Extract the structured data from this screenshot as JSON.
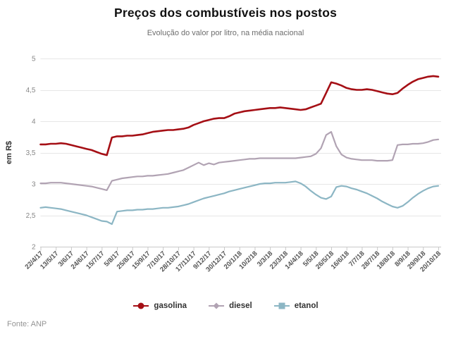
{
  "chart_data": {
    "type": "line",
    "title": "Preços dos combustíveis nos postos",
    "subtitle": "Evolução do valor por litro, na média nacional",
    "ylabel": "em R$",
    "ylim": [
      2,
      5
    ],
    "grid": "horizontal",
    "legend_position": "bottom",
    "source": "Fonte: ANP",
    "y_ticks": [
      {
        "value": 2,
        "label": "2"
      },
      {
        "value": 2.5,
        "label": "2,5"
      },
      {
        "value": 3,
        "label": "3"
      },
      {
        "value": 3.5,
        "label": "3,5"
      },
      {
        "value": 4,
        "label": "4"
      },
      {
        "value": 4.5,
        "label": "4,5"
      },
      {
        "value": 5,
        "label": "5"
      }
    ],
    "points_per_tick": 3,
    "x_tick_labels": [
      "22/4/17",
      "13/5/17",
      "3/6/17",
      "24/6/17",
      "15/7/17",
      "5/8/17",
      "25/8/17",
      "15/9/17",
      "7/10/17",
      "28/10/17",
      "17/11/17",
      "9/12/17",
      "30/12/17",
      "20/1/18",
      "10/2/18",
      "3/3/18",
      "23/3/18",
      "14/4/18",
      "5/5/18",
      "26/5/18",
      "16/6/18",
      "7/7/18",
      "28/7/18",
      "18/8/18",
      "8/9/18",
      "29/9/18",
      "20/10/18"
    ],
    "series": [
      {
        "name": "gasolina",
        "color": "#a50f15",
        "marker": "circle",
        "line_width": 2.6,
        "values": [
          3.63,
          3.63,
          3.64,
          3.64,
          3.65,
          3.64,
          3.62,
          3.6,
          3.58,
          3.56,
          3.54,
          3.51,
          3.48,
          3.46,
          3.74,
          3.76,
          3.76,
          3.77,
          3.77,
          3.78,
          3.79,
          3.81,
          3.83,
          3.84,
          3.85,
          3.86,
          3.86,
          3.87,
          3.88,
          3.9,
          3.94,
          3.97,
          4.0,
          4.02,
          4.04,
          4.05,
          4.05,
          4.08,
          4.12,
          4.14,
          4.16,
          4.17,
          4.18,
          4.19,
          4.2,
          4.21,
          4.21,
          4.22,
          4.21,
          4.2,
          4.19,
          4.18,
          4.19,
          4.22,
          4.25,
          4.28,
          4.45,
          4.62,
          4.6,
          4.57,
          4.53,
          4.51,
          4.5,
          4.5,
          4.51,
          4.5,
          4.48,
          4.46,
          4.44,
          4.43,
          4.45,
          4.52,
          4.58,
          4.63,
          4.67,
          4.69,
          4.71,
          4.72,
          4.71
        ]
      },
      {
        "name": "diesel",
        "color": "#b1a3b3",
        "marker": "diamond",
        "line_width": 2.2,
        "values": [
          3.01,
          3.01,
          3.02,
          3.02,
          3.02,
          3.01,
          3.0,
          2.99,
          2.98,
          2.97,
          2.96,
          2.94,
          2.92,
          2.9,
          3.05,
          3.07,
          3.09,
          3.1,
          3.11,
          3.12,
          3.12,
          3.13,
          3.13,
          3.14,
          3.15,
          3.16,
          3.18,
          3.2,
          3.22,
          3.26,
          3.3,
          3.34,
          3.3,
          3.33,
          3.31,
          3.34,
          3.35,
          3.36,
          3.37,
          3.38,
          3.39,
          3.4,
          3.4,
          3.41,
          3.41,
          3.41,
          3.41,
          3.41,
          3.41,
          3.41,
          3.41,
          3.42,
          3.43,
          3.44,
          3.48,
          3.57,
          3.78,
          3.83,
          3.6,
          3.47,
          3.42,
          3.4,
          3.39,
          3.38,
          3.38,
          3.38,
          3.37,
          3.37,
          3.37,
          3.38,
          3.62,
          3.63,
          3.63,
          3.64,
          3.64,
          3.65,
          3.67,
          3.7,
          3.71
        ]
      },
      {
        "name": "etanol",
        "color": "#8cb6c4",
        "marker": "square",
        "line_width": 2.2,
        "values": [
          2.62,
          2.63,
          2.62,
          2.61,
          2.6,
          2.58,
          2.56,
          2.54,
          2.52,
          2.5,
          2.47,
          2.44,
          2.41,
          2.4,
          2.36,
          2.56,
          2.57,
          2.58,
          2.58,
          2.59,
          2.59,
          2.6,
          2.6,
          2.61,
          2.62,
          2.62,
          2.63,
          2.64,
          2.66,
          2.68,
          2.71,
          2.74,
          2.77,
          2.79,
          2.81,
          2.83,
          2.85,
          2.88,
          2.9,
          2.92,
          2.94,
          2.96,
          2.98,
          3.0,
          3.01,
          3.01,
          3.02,
          3.02,
          3.02,
          3.03,
          3.04,
          3.01,
          2.96,
          2.89,
          2.83,
          2.78,
          2.76,
          2.8,
          2.95,
          2.97,
          2.96,
          2.93,
          2.91,
          2.88,
          2.85,
          2.81,
          2.77,
          2.72,
          2.68,
          2.64,
          2.62,
          2.65,
          2.71,
          2.78,
          2.84,
          2.89,
          2.93,
          2.96,
          2.97
        ]
      }
    ],
    "colors": {
      "grid": "#e6e6e6",
      "axis": "#c9c9c9",
      "x_tick_text": "#555555",
      "y_tick_text": "#878787",
      "axis_title_text": "#333333"
    }
  }
}
